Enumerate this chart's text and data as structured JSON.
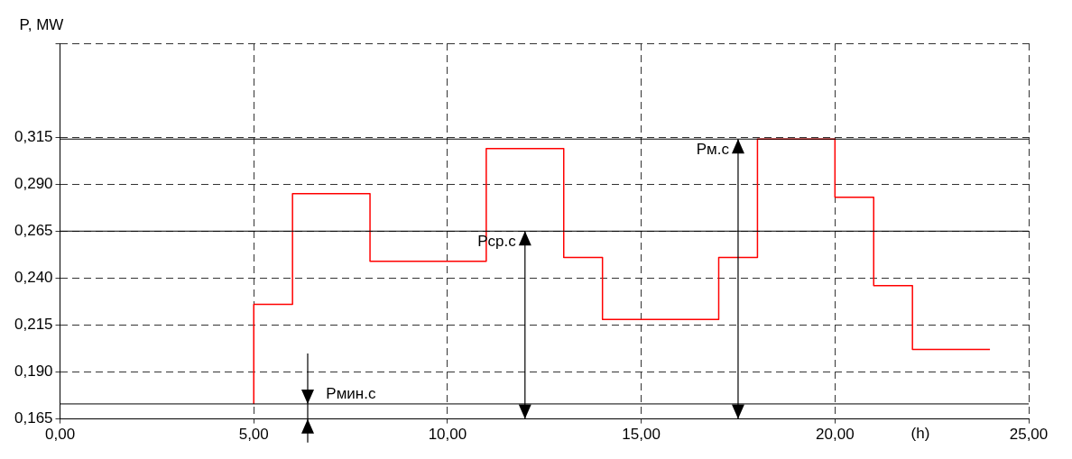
{
  "chart_data": {
    "type": "step",
    "xlabel": "(h)",
    "ylabel": "P, MW",
    "x": [
      5,
      5,
      6,
      8,
      11,
      13,
      14,
      17,
      18,
      20,
      21,
      22,
      24
    ],
    "series": [
      {
        "color": "#ff0000",
        "values": [
          0.173,
          0.226,
          0.285,
          0.249,
          0.309,
          0.251,
          0.218,
          0.251,
          0.314,
          0.283,
          0.236,
          0.202,
          0.202
        ]
      }
    ],
    "xlim": [
      0,
      25
    ],
    "xticks": [
      {
        "value": 0,
        "label": "0,00"
      },
      {
        "value": 5,
        "label": "5,00"
      },
      {
        "value": 10,
        "label": "10,00"
      },
      {
        "value": 15,
        "label": "15,00"
      },
      {
        "value": 20,
        "label": "20,00"
      },
      {
        "value": 25,
        "label": "25,00"
      }
    ],
    "ylim": [
      0.165,
      0.365
    ],
    "yticks": [
      {
        "value": 0.165,
        "label": "0,165"
      },
      {
        "value": 0.19,
        "label": "0,190"
      },
      {
        "value": 0.215,
        "label": "0,215"
      },
      {
        "value": 0.24,
        "label": "0,240"
      },
      {
        "value": 0.265,
        "label": "0,265"
      },
      {
        "value": 0.29,
        "label": "0,290"
      },
      {
        "value": 0.315,
        "label": "0,315"
      },
      {
        "value": 0.365,
        "label": null
      }
    ],
    "ref_lines": [
      {
        "axis": "y",
        "value": 0.265,
        "color": "#000000"
      },
      {
        "axis": "y",
        "value": 0.314,
        "color": "#000000"
      },
      {
        "axis": "y",
        "value": 0.173,
        "color": "#000000"
      }
    ],
    "annotations": [
      {
        "text": "Рср.с",
        "x": 12,
        "y": 0.265
      },
      {
        "text": "Рм.с",
        "x": 17.5,
        "y": 0.314
      },
      {
        "text": "Рмин.с",
        "x": 6.4,
        "y": 0.173
      }
    ],
    "grid": true,
    "legend": false,
    "marker": "none",
    "line_style": "solid"
  }
}
